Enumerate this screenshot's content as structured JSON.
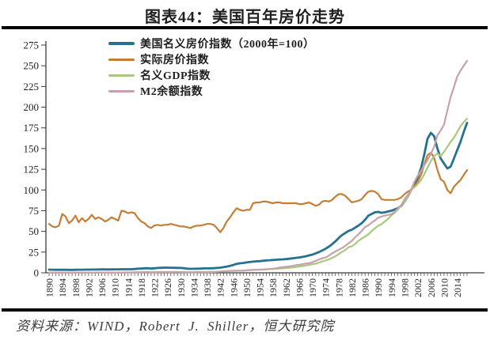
{
  "title": "图表44：美国百年房价走势",
  "source": "资料来源：WIND，Robert J. Shiller，恒大研究院",
  "colors": {
    "axis": "#3c3c3c",
    "text": "#1f1f1f",
    "nominal_house": "#26718f",
    "real_house": "#c67d35",
    "nominal_gdp": "#a6c97d",
    "m2": "#c7a2aa"
  },
  "chart_data": {
    "type": "line",
    "title": "图表44：美国百年房价走势",
    "xlabel": "",
    "ylabel": "",
    "ylim": [
      0,
      275
    ],
    "y_ticks": [
      0,
      25,
      50,
      75,
      100,
      125,
      150,
      175,
      200,
      225,
      250,
      275
    ],
    "x": {
      "start": 1890,
      "end": 2017,
      "step": 1
    },
    "x_tick_labels": [
      1890,
      1894,
      1898,
      1902,
      1906,
      1910,
      1914,
      1918,
      1922,
      1926,
      1930,
      1934,
      1938,
      1942,
      1946,
      1950,
      1954,
      1958,
      1962,
      1966,
      1970,
      1974,
      1978,
      1982,
      1986,
      1990,
      1994,
      1998,
      2002,
      2006,
      2010,
      2014
    ],
    "grid": false,
    "legend_position": "top-center",
    "series": [
      {
        "name": "美国名义房价指数（2000年=100）",
        "color": "#26718f",
        "line_width": 2.8,
        "values": [
          3.8,
          3.7,
          3.6,
          3.6,
          3.7,
          3.6,
          3.5,
          3.5,
          3.6,
          3.7,
          3.7,
          3.8,
          3.8,
          3.9,
          3.9,
          4.0,
          4.1,
          4.1,
          4.0,
          4.1,
          4.2,
          4.2,
          4.3,
          4.3,
          4.3,
          4.3,
          4.6,
          5.0,
          5.2,
          5.4,
          5.5,
          5.2,
          5.4,
          5.8,
          6.0,
          6.2,
          6.2,
          6.1,
          6.0,
          5.9,
          5.8,
          5.5,
          5.0,
          4.8,
          4.9,
          5.0,
          5.1,
          5.3,
          5.3,
          5.4,
          5.5,
          5.8,
          6.2,
          6.8,
          7.5,
          8.4,
          9.5,
          10.8,
          11.5,
          11.8,
          12.5,
          13.0,
          13.5,
          13.8,
          14.0,
          14.5,
          15.0,
          15.2,
          15.5,
          15.8,
          16.0,
          16.2,
          16.5,
          17.0,
          17.5,
          18.0,
          18.5,
          19.2,
          20.0,
          21.0,
          22.0,
          23.5,
          25.0,
          27.0,
          29.0,
          31.5,
          34.5,
          38.0,
          42.0,
          45.5,
          48.0,
          50.5,
          52.0,
          54.5,
          57.0,
          60.0,
          64.0,
          69.0,
          71.0,
          73.0,
          73.5,
          72.5,
          73.0,
          74.0,
          75.0,
          76.5,
          78.0,
          81.0,
          86.0,
          92.0,
          100,
          107,
          115,
          126,
          143,
          162,
          169,
          165,
          150,
          138,
          132,
          126,
          128,
          138,
          148,
          158,
          170,
          181
        ]
      },
      {
        "name": "实际房价指数",
        "color": "#c67d35",
        "line_width": 2.2,
        "values": [
          59,
          56,
          55,
          57,
          71,
          68,
          60,
          63,
          69,
          61,
          66,
          62,
          65,
          70,
          65,
          67,
          65,
          62,
          64,
          67,
          65,
          63,
          75,
          74,
          72,
          73,
          72,
          66,
          62,
          60,
          56,
          54,
          57,
          58,
          57,
          58,
          58,
          59,
          58,
          57,
          56,
          56,
          55,
          54,
          56,
          57,
          57,
          58,
          59,
          59,
          58,
          54,
          49,
          54,
          62,
          67,
          73,
          78,
          76,
          75,
          76,
          76,
          84,
          85,
          85,
          86,
          86,
          85,
          84,
          85,
          85,
          84,
          84,
          84,
          84,
          84,
          83,
          83,
          84,
          85,
          83,
          81,
          82,
          86,
          87,
          86,
          88,
          92,
          95,
          95,
          93,
          89,
          85,
          86,
          87,
          89,
          94,
          98,
          99,
          98,
          95,
          89,
          88,
          88,
          88,
          88,
          89,
          91,
          95,
          98,
          100,
          104,
          110,
          118,
          131,
          142,
          145,
          139,
          124,
          113,
          110,
          100,
          96,
          104,
          108,
          112,
          118,
          124
        ]
      },
      {
        "name": "名义GDP指数",
        "color": "#a6c97d",
        "line_width": 2.2,
        "values": [
          0.1,
          0.1,
          0.1,
          0.1,
          0.1,
          0.1,
          0.1,
          0.1,
          0.2,
          0.2,
          0.2,
          0.2,
          0.2,
          0.2,
          0.2,
          0.3,
          0.3,
          0.3,
          0.3,
          0.3,
          0.3,
          0.3,
          0.4,
          0.4,
          0.4,
          0.4,
          0.5,
          0.6,
          0.7,
          0.8,
          0.9,
          0.7,
          0.7,
          0.8,
          0.8,
          0.9,
          0.9,
          0.9,
          1.0,
          1.0,
          0.9,
          0.7,
          0.6,
          0.5,
          0.6,
          0.7,
          0.8,
          0.9,
          0.8,
          0.9,
          1.0,
          1.2,
          1.6,
          1.9,
          2.1,
          2.2,
          2.2,
          2.4,
          2.6,
          2.6,
          2.9,
          3.3,
          3.5,
          3.7,
          3.7,
          4.0,
          4.2,
          4.4,
          4.5,
          4.9,
          5.2,
          5.3,
          5.7,
          6.0,
          6.4,
          7.0,
          7.6,
          8.1,
          8.8,
          9.5,
          10.3,
          11.1,
          12.2,
          13.7,
          14.8,
          16.1,
          18.0,
          20.0,
          22.6,
          25.2,
          27.5,
          30.8,
          32.1,
          34.8,
          38.6,
          41.4,
          43.7,
          46.4,
          50.1,
          53.8,
          56.8,
          58.7,
          62.0,
          65.1,
          69.2,
          72.4,
          76.6,
          81.4,
          86.0,
          91.3,
          100,
          103,
          107,
          112,
          119,
          127,
          135,
          141,
          144,
          141,
          146,
          152,
          158,
          163,
          170,
          177,
          182,
          186
        ]
      },
      {
        "name": "M2余额指数",
        "color": "#c7a2aa",
        "line_width": 2.2,
        "values": [
          0.1,
          0.1,
          0.1,
          0.1,
          0.1,
          0.1,
          0.1,
          0.1,
          0.1,
          0.2,
          0.2,
          0.2,
          0.2,
          0.2,
          0.3,
          0.3,
          0.3,
          0.3,
          0.3,
          0.4,
          0.4,
          0.4,
          0.4,
          0.5,
          0.5,
          0.5,
          0.6,
          0.7,
          0.8,
          0.9,
          0.9,
          0.8,
          0.9,
          0.9,
          1.0,
          1.0,
          1.0,
          1.0,
          1.0,
          1.0,
          1.0,
          0.9,
          0.8,
          0.7,
          0.8,
          0.9,
          0.9,
          0.9,
          1.0,
          1.1,
          1.1,
          1.2,
          1.4,
          1.7,
          2.0,
          2.3,
          2.5,
          2.6,
          2.6,
          2.6,
          3.0,
          3.2,
          3.4,
          3.6,
          3.8,
          4.0,
          4.3,
          4.6,
          5.0,
          5.5,
          6.3,
          6.8,
          7.3,
          7.8,
          8.4,
          9.3,
          9.7,
          10.4,
          11.2,
          11.6,
          12.7,
          14.3,
          16.1,
          17.5,
          18.4,
          20.6,
          23.4,
          25.8,
          27.9,
          29.9,
          32.5,
          35.5,
          38.6,
          42.9,
          46.5,
          50.6,
          55.3,
          57.3,
          60.4,
          63.3,
          66.5,
          68.0,
          69.0,
          69.9,
          70.7,
          73.9,
          77.5,
          81.8,
          88.9,
          94.1,
          100,
          110,
          117,
          123,
          130,
          136,
          144,
          152,
          166,
          172,
          179,
          196,
          212,
          224,
          237,
          244,
          250,
          256
        ]
      }
    ]
  }
}
